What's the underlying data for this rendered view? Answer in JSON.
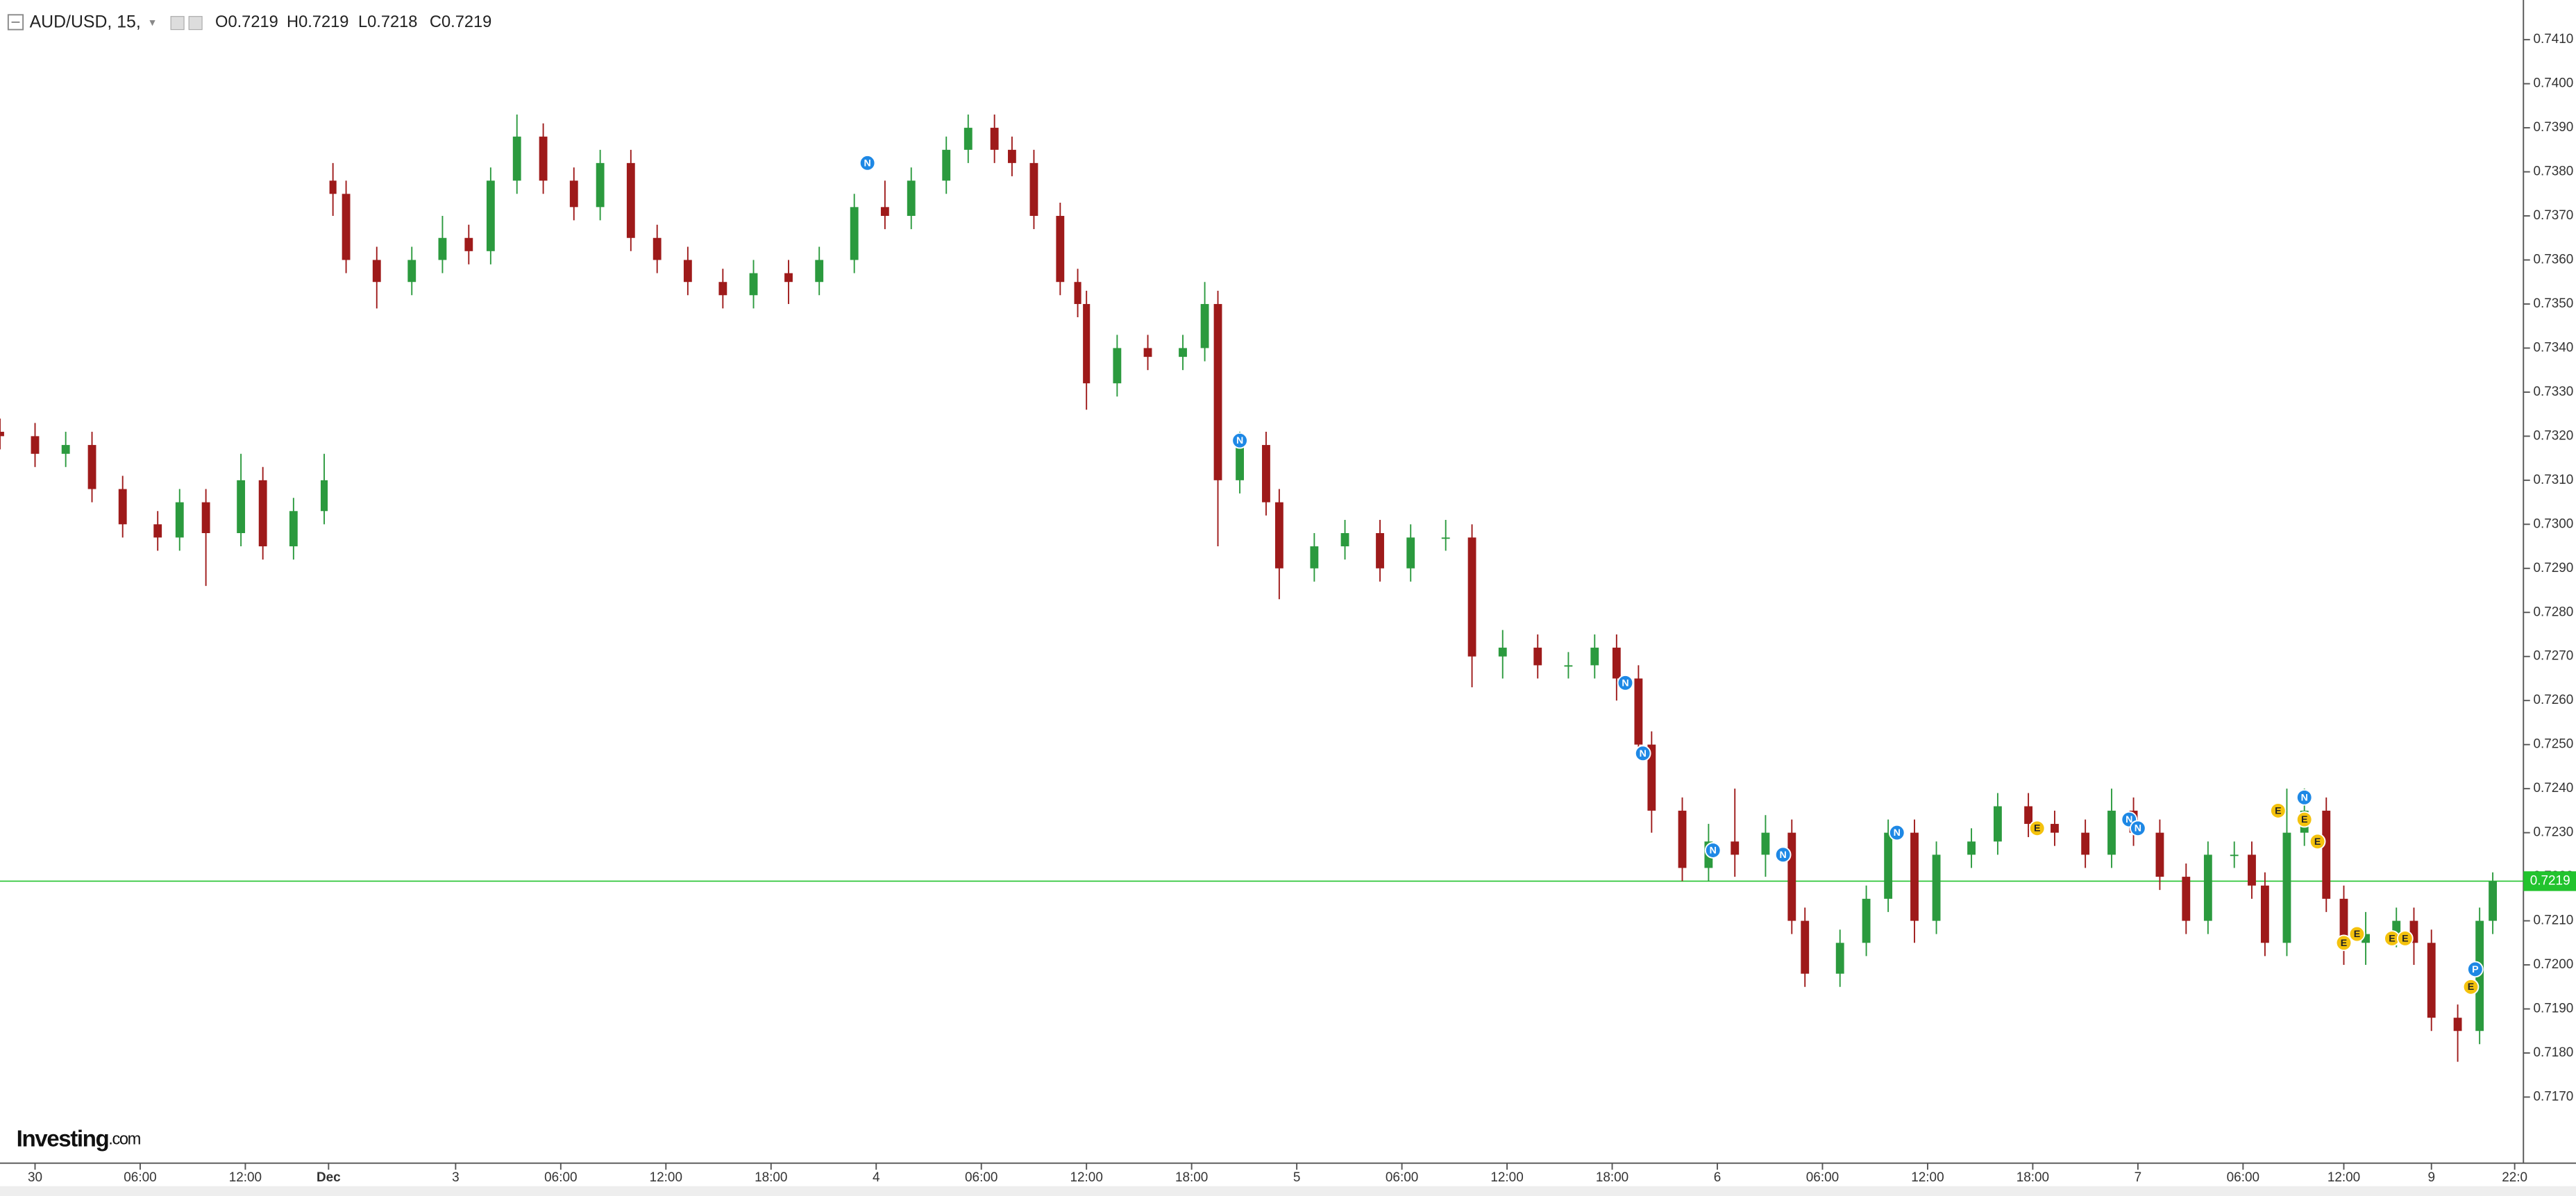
{
  "chart_data": {
    "type": "candlestick",
    "header": {
      "symbol": "AUD/USD, 15,",
      "ohlc_labels": [
        "O",
        "H",
        "L",
        "C"
      ],
      "ohlc_values": [
        "0.7219",
        "0.7219",
        "0.7218",
        "0.7219"
      ]
    },
    "watermark": {
      "brand": "Investing",
      "suffix": ".com"
    },
    "up_color": "#2b9a3e",
    "down_color": "#9e1a1a",
    "x": [
      0,
      8,
      15,
      21,
      28,
      36,
      41,
      47,
      55,
      60,
      67,
      74,
      76,
      79,
      86,
      94,
      101,
      107,
      112,
      118,
      124,
      131,
      137,
      144,
      150,
      157,
      165,
      172,
      180,
      187,
      195,
      202,
      208,
      216,
      221,
      227,
      231,
      236,
      242,
      246,
      248,
      255,
      262,
      270,
      275,
      278,
      283,
      289,
      292,
      300,
      307,
      315,
      322,
      330,
      336,
      343,
      351,
      358,
      364,
      369,
      374,
      377,
      384,
      390,
      396,
      403,
      409,
      412,
      420,
      426,
      431,
      437,
      442,
      450,
      456,
      463,
      469,
      476,
      482,
      487,
      493,
      499,
      504,
      510,
      514,
      517,
      522,
      526,
      531,
      535,
      540,
      547,
      551,
      555,
      561,
      566,
      569
    ],
    "open": [
      0.7321,
      0.732,
      0.7316,
      0.7318,
      0.7308,
      0.73,
      0.7297,
      0.7305,
      0.7298,
      0.731,
      0.7295,
      0.7303,
      0.7378,
      0.7375,
      0.736,
      0.7355,
      0.736,
      0.7365,
      0.7362,
      0.7378,
      0.7388,
      0.7378,
      0.7372,
      0.7382,
      0.7365,
      0.736,
      0.7355,
      0.7352,
      0.7357,
      0.7355,
      0.736,
      0.7372,
      0.737,
      0.7378,
      0.7385,
      0.739,
      0.7385,
      0.7382,
      0.737,
      0.7355,
      0.735,
      0.7332,
      0.734,
      0.7338,
      0.734,
      0.735,
      0.731,
      0.7318,
      0.7305,
      0.729,
      0.7295,
      0.7298,
      0.729,
      0.7297,
      0.7297,
      0.727,
      0.7272,
      0.7268,
      0.7268,
      0.7272,
      0.7265,
      0.725,
      0.7235,
      0.7222,
      0.7228,
      0.7225,
      0.723,
      0.721,
      0.7198,
      0.7205,
      0.7215,
      0.723,
      0.721,
      0.7225,
      0.7228,
      0.7236,
      0.7232,
      0.723,
      0.7225,
      0.7235,
      0.723,
      0.722,
      0.721,
      0.7225,
      0.7225,
      0.7218,
      0.7205,
      0.723,
      0.7235,
      0.7215,
      0.7205,
      0.7207,
      0.721,
      0.7205,
      0.7188,
      0.7185,
      0.721
    ],
    "high": [
      0.7324,
      0.7323,
      0.7321,
      0.7321,
      0.7311,
      0.7303,
      0.7308,
      0.7308,
      0.7316,
      0.7313,
      0.7306,
      0.7316,
      0.7382,
      0.7378,
      0.7363,
      0.7363,
      0.737,
      0.7368,
      0.7381,
      0.7393,
      0.7391,
      0.7381,
      0.7385,
      0.7385,
      0.7368,
      0.7363,
      0.7358,
      0.736,
      0.736,
      0.7363,
      0.7375,
      0.7378,
      0.7381,
      0.7388,
      0.7393,
      0.7393,
      0.7388,
      0.7385,
      0.7373,
      0.7358,
      0.7353,
      0.7343,
      0.7343,
      0.7343,
      0.7355,
      0.7353,
      0.7321,
      0.7321,
      0.7308,
      0.7298,
      0.7301,
      0.7301,
      0.73,
      0.7301,
      0.73,
      0.7276,
      0.7275,
      0.7271,
      0.7275,
      0.7275,
      0.7268,
      0.7253,
      0.7238,
      0.7232,
      0.724,
      0.7234,
      0.7233,
      0.7213,
      0.7208,
      0.7218,
      0.7233,
      0.7233,
      0.7228,
      0.7231,
      0.7239,
      0.7239,
      0.7235,
      0.7233,
      0.724,
      0.7238,
      0.7233,
      0.7223,
      0.7228,
      0.7228,
      0.7228,
      0.7221,
      0.724,
      0.724,
      0.7238,
      0.7218,
      0.7212,
      0.7213,
      0.7213,
      0.7208,
      0.7191,
      0.7213,
      0.7221
    ],
    "low": [
      0.7317,
      0.7313,
      0.7313,
      0.7305,
      0.7297,
      0.7294,
      0.7294,
      0.7286,
      0.7295,
      0.7292,
      0.7292,
      0.73,
      0.737,
      0.7357,
      0.7349,
      0.7352,
      0.7357,
      0.7359,
      0.7359,
      0.7375,
      0.7375,
      0.7369,
      0.7369,
      0.7362,
      0.7357,
      0.7352,
      0.7349,
      0.7349,
      0.735,
      0.7352,
      0.7357,
      0.7367,
      0.7367,
      0.7375,
      0.7382,
      0.7382,
      0.7379,
      0.7367,
      0.7352,
      0.7347,
      0.7326,
      0.7329,
      0.7335,
      0.7335,
      0.7337,
      0.7295,
      0.7307,
      0.7302,
      0.7283,
      0.7287,
      0.7292,
      0.7287,
      0.7287,
      0.7294,
      0.7263,
      0.7265,
      0.7265,
      0.7265,
      0.7265,
      0.726,
      0.7247,
      0.723,
      0.7219,
      0.7219,
      0.722,
      0.722,
      0.7207,
      0.7195,
      0.7195,
      0.7202,
      0.7212,
      0.7205,
      0.7207,
      0.7222,
      0.7225,
      0.7229,
      0.7227,
      0.7222,
      0.7222,
      0.7227,
      0.7217,
      0.7207,
      0.7207,
      0.7222,
      0.7215,
      0.7202,
      0.7202,
      0.7227,
      0.7212,
      0.72,
      0.72,
      0.7204,
      0.72,
      0.7185,
      0.7178,
      0.7182,
      0.7207
    ],
    "close": [
      0.732,
      0.7316,
      0.7318,
      0.7308,
      0.73,
      0.7297,
      0.7305,
      0.7298,
      0.731,
      0.7295,
      0.7303,
      0.731,
      0.7375,
      0.736,
      0.7355,
      0.736,
      0.7365,
      0.7362,
      0.7378,
      0.7388,
      0.7378,
      0.7372,
      0.7382,
      0.7365,
      0.736,
      0.7355,
      0.7352,
      0.7357,
      0.7355,
      0.736,
      0.7372,
      0.737,
      0.7378,
      0.7385,
      0.739,
      0.7385,
      0.7382,
      0.737,
      0.7355,
      0.735,
      0.7332,
      0.734,
      0.7338,
      0.734,
      0.735,
      0.731,
      0.7318,
      0.7305,
      0.729,
      0.7295,
      0.7298,
      0.729,
      0.7297,
      0.7297,
      0.727,
      0.7272,
      0.7268,
      0.7268,
      0.7272,
      0.7265,
      0.725,
      0.7235,
      0.7222,
      0.7228,
      0.7225,
      0.723,
      0.721,
      0.7198,
      0.7205,
      0.7215,
      0.723,
      0.721,
      0.7225,
      0.7228,
      0.7236,
      0.7232,
      0.723,
      0.7225,
      0.7235,
      0.723,
      0.722,
      0.721,
      0.7225,
      0.7225,
      0.7218,
      0.7205,
      0.723,
      0.7235,
      0.7215,
      0.7205,
      0.7207,
      0.721,
      0.7205,
      0.7188,
      0.7185,
      0.721,
      0.7219
    ],
    "xlim": [
      0,
      576
    ],
    "xticks": [
      {
        "value": 8,
        "label": "30"
      },
      {
        "value": 32,
        "label": "06:00"
      },
      {
        "value": 56,
        "label": "12:00"
      },
      {
        "value": 75,
        "label": "Dec"
      },
      {
        "value": 104,
        "label": "3"
      },
      {
        "value": 128,
        "label": "06:00"
      },
      {
        "value": 152,
        "label": "12:00"
      },
      {
        "value": 176,
        "label": "18:00"
      },
      {
        "value": 200,
        "label": "4"
      },
      {
        "value": 224,
        "label": "06:00"
      },
      {
        "value": 248,
        "label": "12:00"
      },
      {
        "value": 272,
        "label": "18:00"
      },
      {
        "value": 296,
        "label": "5"
      },
      {
        "value": 320,
        "label": "06:00"
      },
      {
        "value": 344,
        "label": "12:00"
      },
      {
        "value": 368,
        "label": "18:00"
      },
      {
        "value": 392,
        "label": "6"
      },
      {
        "value": 416,
        "label": "06:00"
      },
      {
        "value": 440,
        "label": "12:00"
      },
      {
        "value": 464,
        "label": "18:00"
      },
      {
        "value": 488,
        "label": "7"
      },
      {
        "value": 512,
        "label": "06:00"
      },
      {
        "value": 535,
        "label": "12:00"
      },
      {
        "value": 555,
        "label": "9"
      },
      {
        "value": 574,
        "label": "22:0"
      }
    ],
    "ylim": [
      0.7155,
      0.7419
    ],
    "yticks": [
      {
        "value": 0.741,
        "label": "0.7410"
      },
      {
        "value": 0.74,
        "label": "0.7400"
      },
      {
        "value": 0.739,
        "label": "0.7390"
      },
      {
        "value": 0.738,
        "label": "0.7380"
      },
      {
        "value": 0.737,
        "label": "0.7370"
      },
      {
        "value": 0.736,
        "label": "0.7360"
      },
      {
        "value": 0.735,
        "label": "0.7350"
      },
      {
        "value": 0.734,
        "label": "0.7340"
      },
      {
        "value": 0.733,
        "label": "0.7330"
      },
      {
        "value": 0.732,
        "label": "0.7320"
      },
      {
        "value": 0.731,
        "label": "0.7310"
      },
      {
        "value": 0.73,
        "label": "0.7300"
      },
      {
        "value": 0.729,
        "label": "0.7290"
      },
      {
        "value": 0.728,
        "label": "0.7280"
      },
      {
        "value": 0.727,
        "label": "0.7270"
      },
      {
        "value": 0.726,
        "label": "0.7260"
      },
      {
        "value": 0.725,
        "label": "0.7250"
      },
      {
        "value": 0.724,
        "label": "0.7240"
      },
      {
        "value": 0.723,
        "label": "0.7230"
      },
      {
        "value": 0.722,
        "label": "0.7220"
      },
      {
        "value": 0.721,
        "label": "0.7210"
      },
      {
        "value": 0.72,
        "label": "0.7200"
      },
      {
        "value": 0.719,
        "label": "0.7190"
      },
      {
        "value": 0.718,
        "label": "0.7180"
      },
      {
        "value": 0.717,
        "label": "0.7170"
      }
    ],
    "last_price": {
      "value": 0.7219,
      "label": "0.7219",
      "color": "#22c32e"
    },
    "markers": [
      {
        "label": "N",
        "x": 198,
        "y": 0.7382,
        "color": "#1e88e5"
      },
      {
        "label": "N",
        "x": 283,
        "y": 0.7319,
        "color": "#1e88e5"
      },
      {
        "label": "N",
        "x": 371,
        "y": 0.7264,
        "color": "#1e88e5"
      },
      {
        "label": "N",
        "x": 375,
        "y": 0.7248,
        "color": "#1e88e5"
      },
      {
        "label": "N",
        "x": 391,
        "y": 0.7226,
        "color": "#1e88e5"
      },
      {
        "label": "N",
        "x": 407,
        "y": 0.7225,
        "color": "#1e88e5"
      },
      {
        "label": "N",
        "x": 433,
        "y": 0.723,
        "color": "#1e88e5"
      },
      {
        "label": "E",
        "x": 465,
        "y": 0.7231,
        "color": "#f4c20d"
      },
      {
        "label": "N",
        "x": 486,
        "y": 0.7233,
        "color": "#1e88e5"
      },
      {
        "label": "N",
        "x": 488,
        "y": 0.7231,
        "color": "#1e88e5"
      },
      {
        "label": "E",
        "x": 520,
        "y": 0.7235,
        "color": "#f4c20d"
      },
      {
        "label": "N",
        "x": 526,
        "y": 0.7238,
        "color": "#1e88e5"
      },
      {
        "label": "E",
        "x": 526,
        "y": 0.7233,
        "color": "#f4c20d"
      },
      {
        "label": "E",
        "x": 529,
        "y": 0.7228,
        "color": "#f4c20d"
      },
      {
        "label": "E",
        "x": 535,
        "y": 0.7205,
        "color": "#f4c20d"
      },
      {
        "label": "E",
        "x": 538,
        "y": 0.7207,
        "color": "#f4c20d"
      },
      {
        "label": "E",
        "x": 546,
        "y": 0.7206,
        "color": "#f4c20d"
      },
      {
        "label": "E",
        "x": 549,
        "y": 0.7206,
        "color": "#f4c20d"
      },
      {
        "label": "E",
        "x": 564,
        "y": 0.7195,
        "color": "#f4c20d"
      },
      {
        "label": "P",
        "x": 565,
        "y": 0.7199,
        "color": "#1e88e5"
      }
    ]
  }
}
